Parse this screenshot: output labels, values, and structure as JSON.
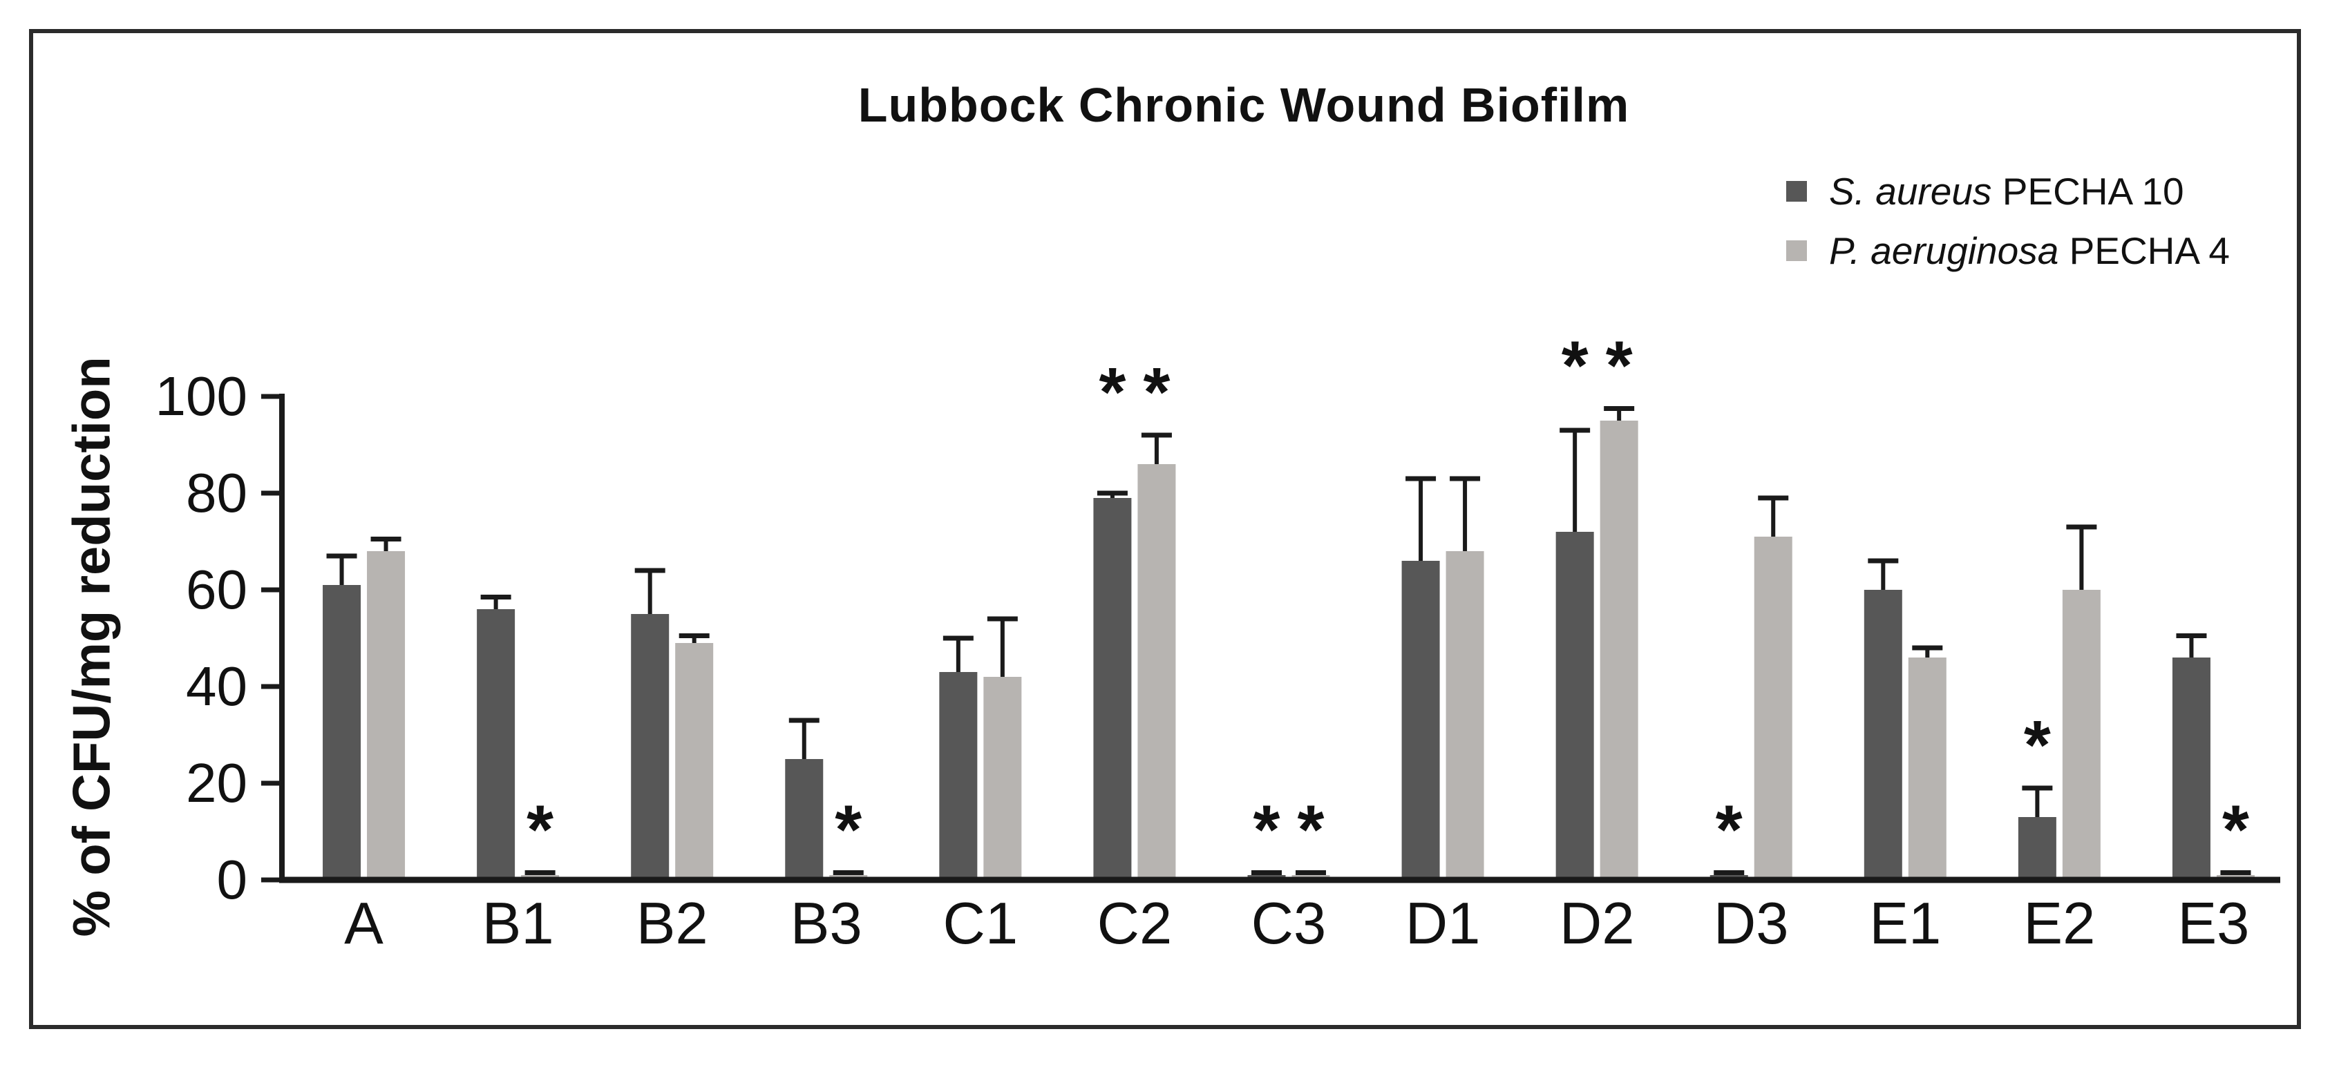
{
  "figure": {
    "title": "Lubbock Chronic Wound Biofilm",
    "y_axis_title": "% of CFU/mg reduction"
  },
  "legend": {
    "items": [
      {
        "species": "S. aureus",
        "strain": "PECHA 10",
        "swatch_color": "#575757"
      },
      {
        "species": "P. aeruginosa",
        "strain": "PECHA 4",
        "swatch_color": "#b7b4b1"
      }
    ]
  },
  "chart_data": {
    "type": "bar",
    "title": "Lubbock Chronic Wound Biofilm",
    "xlabel": "",
    "ylabel": "% of CFU/mg reduction",
    "ylim": [
      0,
      100
    ],
    "yticks": [
      0,
      20,
      40,
      60,
      80,
      100
    ],
    "grid": false,
    "legend_position": "top-right",
    "significance_marker": "*",
    "error_bars": "plus_only",
    "categories": [
      "A",
      "B1",
      "B2",
      "B3",
      "C1",
      "C2",
      "C3",
      "D1",
      "D2",
      "D3",
      "E1",
      "E2",
      "E3"
    ],
    "series": [
      {
        "name": "S. aureus PECHA 10",
        "species": "S. aureus",
        "strain": "PECHA 10",
        "color": "#575757",
        "values": [
          61,
          56,
          55,
          25,
          43,
          79,
          1,
          66,
          72,
          1,
          60,
          13,
          46
        ],
        "errors_plus": [
          6,
          2.5,
          9,
          8,
          7,
          1,
          0.5,
          17,
          21,
          0.5,
          6,
          6,
          4.5
        ],
        "significant_categories": [
          "C2",
          "C3",
          "D2",
          "D3",
          "E2"
        ]
      },
      {
        "name": "P. aeruginosa PECHA 4",
        "species": "P. aeruginosa",
        "strain": "PECHA 4",
        "color": "#b7b4b1",
        "values": [
          68,
          1,
          49,
          1,
          42,
          86,
          1,
          68,
          95,
          71,
          46,
          60,
          1
        ],
        "errors_plus": [
          2.5,
          0.5,
          1.5,
          0.5,
          12,
          6,
          0.5,
          15,
          2.5,
          8,
          2,
          13,
          0.5
        ],
        "significant_categories": [
          "B1",
          "B3",
          "C2",
          "C3",
          "D2",
          "E3"
        ]
      }
    ]
  }
}
